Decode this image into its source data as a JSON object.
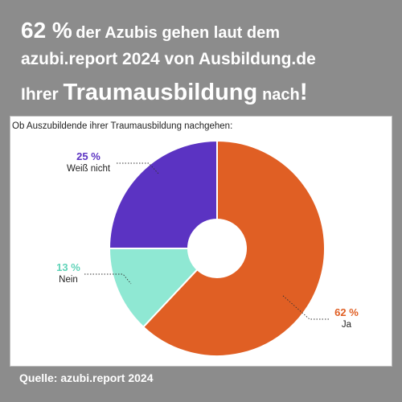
{
  "headline": {
    "line1_pct": "62 %",
    "line1_rest": "der Azubis gehen laut dem",
    "line2": "azubi.report 2024 von Ausbildung.de",
    "line3_a": "Ihrer",
    "line3_b": "Traumausbildung",
    "line3_c": "nach",
    "line3_d": "!"
  },
  "source": "Quelle: azubi.report 2024",
  "chart_data": {
    "type": "pie",
    "donut": true,
    "title": "Ob Auszubildende ihrer Traumausbildung nachgehen:",
    "slices": [
      {
        "label": "Ja",
        "value": 62,
        "value_label": "62 %",
        "color": "#e05f24"
      },
      {
        "label": "Nein",
        "value": 13,
        "value_label": "13 %",
        "color": "#8fe8d3"
      },
      {
        "label": "Weiß nicht",
        "value": 25,
        "value_label": "25 %",
        "color": "#5b33c2"
      }
    ]
  }
}
